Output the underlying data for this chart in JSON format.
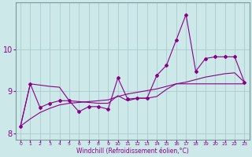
{
  "xlabel": "Windchill (Refroidissement éolien,°C)",
  "bg_color": "#cce8e8",
  "grid_color": "#aacccc",
  "line_color": "#880088",
  "x_values": [
    0,
    1,
    2,
    3,
    4,
    5,
    6,
    7,
    8,
    9,
    10,
    11,
    12,
    13,
    14,
    15,
    16,
    17,
    18,
    19,
    20,
    21,
    22,
    23
  ],
  "line_jagged": [
    8.18,
    9.18,
    8.62,
    8.72,
    8.78,
    8.78,
    8.52,
    8.64,
    8.64,
    8.58,
    9.32,
    8.82,
    8.84,
    8.84,
    9.38,
    9.62,
    10.22,
    10.82,
    9.48,
    9.78,
    9.82,
    9.82,
    9.82,
    9.22
  ],
  "line_smooth": [
    8.18,
    9.18,
    9.15,
    9.12,
    9.1,
    8.78,
    8.76,
    8.74,
    8.72,
    8.72,
    8.9,
    8.78,
    8.84,
    8.84,
    8.88,
    9.05,
    9.18,
    9.18,
    9.18,
    9.18,
    9.18,
    9.18,
    9.18,
    9.18
  ],
  "line_trend": [
    8.18,
    8.35,
    8.5,
    8.6,
    8.68,
    8.72,
    8.74,
    8.76,
    8.78,
    8.8,
    8.88,
    8.94,
    8.98,
    9.02,
    9.06,
    9.12,
    9.18,
    9.22,
    9.28,
    9.34,
    9.38,
    9.42,
    9.44,
    9.22
  ],
  "ylim": [
    7.85,
    11.1
  ],
  "yticks": [
    8,
    9,
    10
  ],
  "xticks": [
    0,
    1,
    2,
    3,
    4,
    5,
    6,
    7,
    8,
    9,
    10,
    11,
    12,
    13,
    14,
    15,
    16,
    17,
    18,
    19,
    20,
    21,
    22,
    23
  ]
}
